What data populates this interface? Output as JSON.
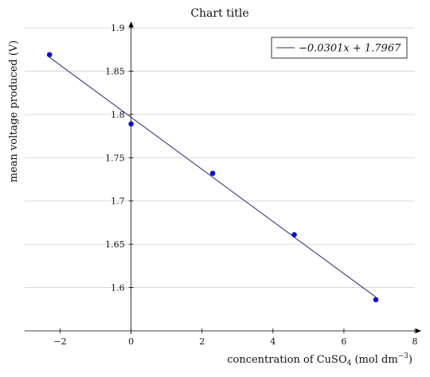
{
  "chart_data": {
    "type": "scatter",
    "title": "Chart title",
    "xlabel": "concentration of CuSO4 (mol dm−3)",
    "xlabel_parts": {
      "prefix": "concentration of CuSO",
      "subscript": "4",
      "unit_open": " (mol dm",
      "superscript": "−3",
      "unit_close": ")"
    },
    "ylabel": "mean voltage produced (V)",
    "xlim": [
      -3,
      8
    ],
    "ylim": [
      1.55,
      1.9
    ],
    "xticks": [
      -2,
      0,
      2,
      4,
      6,
      8
    ],
    "xtick_labels": [
      "−2",
      "0",
      "2",
      "4",
      "6",
      "8"
    ],
    "yticks": [
      1.6,
      1.65,
      1.7,
      1.75,
      1.8,
      1.85,
      1.9
    ],
    "ytick_labels": [
      "1.6",
      "1.65",
      "1.7",
      "1.75",
      "1.8",
      "1.85",
      "1.9"
    ],
    "grid": "horizontal",
    "points": [
      {
        "x": -2.3,
        "y": 1.869
      },
      {
        "x": 0.0,
        "y": 1.789
      },
      {
        "x": 2.3,
        "y": 1.732
      },
      {
        "x": 4.6,
        "y": 1.661
      },
      {
        "x": 6.9,
        "y": 1.586
      }
    ],
    "fit": {
      "slope": -0.0301,
      "intercept": 1.7967,
      "x_range": [
        -2.3,
        6.9
      ],
      "label": "−0.0301x + 1.7967"
    },
    "legend": {
      "position": "top-right",
      "entries": [
        "−0.0301x + 1.7967"
      ]
    },
    "colors": {
      "points": "#1010c8",
      "fit_line": "#2a2a7a",
      "grid": "#d0d0d0",
      "axis": "#000000"
    }
  }
}
